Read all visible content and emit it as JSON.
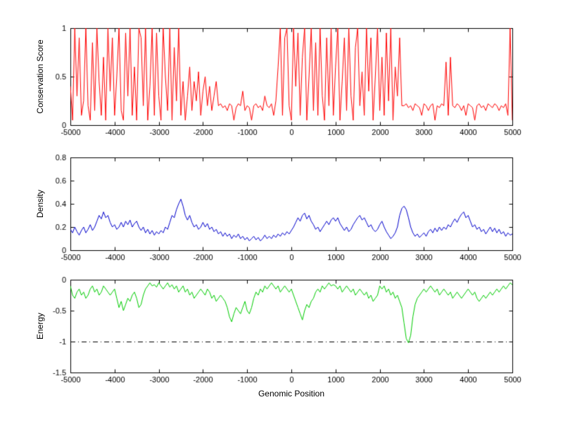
{
  "figure": {
    "background": "#ffffff"
  },
  "chart_data": [
    {
      "type": "line",
      "title": "",
      "ylabel": "Conservation Score",
      "xlabel": "",
      "color": "#ff0000",
      "xlim": [
        -5000,
        5000
      ],
      "ylim": [
        0,
        1
      ],
      "xticks": [
        -5000,
        -4000,
        -3000,
        -2000,
        -1000,
        0,
        1000,
        2000,
        3000,
        4000,
        5000
      ],
      "yticks": [
        0,
        0.5,
        1
      ],
      "grid": false,
      "legend": "none",
      "x": {
        "start": -5000,
        "step": 50,
        "count": 201
      },
      "y": [
        0.4,
        0.05,
        1.0,
        0.3,
        0.9,
        0.1,
        0.25,
        1.0,
        0.2,
        0.05,
        0.85,
        0.15,
        1.0,
        0.45,
        0.1,
        0.7,
        0.05,
        1.0,
        0.35,
        0.9,
        0.1,
        0.5,
        1.0,
        0.15,
        0.05,
        0.95,
        0.3,
        1.0,
        0.1,
        0.6,
        0.05,
        1.0,
        0.9,
        0.2,
        1.0,
        0.05,
        0.4,
        1.0,
        0.1,
        0.95,
        0.3,
        0.05,
        1.0,
        0.5,
        0.15,
        1.0,
        0.05,
        0.8,
        0.25,
        1.0,
        0.1,
        0.45,
        0.05,
        0.3,
        0.6,
        0.15,
        0.45,
        0.25,
        0.55,
        0.1,
        0.35,
        0.5,
        0.2,
        0.4,
        0.15,
        0.3,
        0.45,
        0.2,
        0.22,
        0.18,
        0.2,
        0.15,
        0.22,
        0.2,
        0.05,
        0.18,
        0.22,
        0.2,
        0.35,
        0.15,
        0.2,
        0.18,
        0.05,
        0.2,
        0.22,
        0.18,
        0.2,
        0.15,
        0.3,
        0.2,
        0.18,
        0.22,
        0.1,
        0.25,
        0.6,
        1.0,
        0.1,
        0.9,
        1.0,
        0.2,
        0.05,
        1.0,
        0.4,
        0.95,
        0.1,
        0.7,
        1.0,
        0.05,
        0.5,
        1.0,
        0.15,
        0.85,
        0.1,
        1.0,
        0.3,
        0.05,
        0.9,
        0.2,
        1.0,
        0.1,
        0.6,
        1.0,
        0.05,
        0.45,
        0.9,
        0.15,
        1.0,
        0.3,
        0.05,
        0.8,
        1.0,
        0.2,
        0.55,
        0.1,
        1.0,
        0.35,
        0.9,
        0.05,
        0.5,
        1.0,
        0.15,
        0.7,
        0.1,
        0.95,
        0.25,
        1.0,
        0.05,
        0.6,
        0.3,
        0.9,
        0.2,
        0.2,
        0.22,
        0.18,
        0.2,
        0.15,
        0.22,
        0.2,
        0.18,
        0.1,
        0.22,
        0.2,
        0.15,
        0.2,
        0.22,
        0.05,
        0.2,
        0.18,
        0.22,
        0.2,
        0.65,
        0.1,
        0.7,
        0.2,
        0.18,
        0.22,
        0.2,
        0.15,
        0.2,
        0.1,
        0.22,
        0.2,
        0.18,
        0.05,
        0.2,
        0.22,
        0.18,
        0.2,
        0.15,
        0.22,
        0.2,
        0.18,
        0.22,
        0.2,
        0.15,
        0.2,
        0.18,
        0.22,
        0.1,
        1.0,
        0.05
      ]
    },
    {
      "type": "line",
      "title": "",
      "ylabel": "Density",
      "xlabel": "",
      "color": "#0000cc",
      "xlim": [
        -5000,
        5000
      ],
      "ylim": [
        0,
        0.8
      ],
      "xticks": [
        -5000,
        -4000,
        -3000,
        -2000,
        -1000,
        0,
        1000,
        2000,
        3000,
        4000,
        5000
      ],
      "yticks": [
        0,
        0.2,
        0.4,
        0.6,
        0.8
      ],
      "grid": false,
      "legend": "none",
      "x": {
        "start": -5000,
        "step": 50,
        "count": 201
      },
      "y": [
        0.18,
        0.15,
        0.2,
        0.16,
        0.13,
        0.17,
        0.2,
        0.15,
        0.18,
        0.22,
        0.17,
        0.2,
        0.25,
        0.3,
        0.27,
        0.33,
        0.28,
        0.3,
        0.24,
        0.2,
        0.22,
        0.18,
        0.2,
        0.24,
        0.2,
        0.25,
        0.22,
        0.26,
        0.2,
        0.23,
        0.25,
        0.2,
        0.17,
        0.2,
        0.15,
        0.18,
        0.14,
        0.17,
        0.13,
        0.16,
        0.14,
        0.17,
        0.15,
        0.2,
        0.18,
        0.24,
        0.3,
        0.28,
        0.35,
        0.4,
        0.44,
        0.38,
        0.3,
        0.26,
        0.3,
        0.24,
        0.2,
        0.22,
        0.18,
        0.2,
        0.24,
        0.2,
        0.23,
        0.18,
        0.2,
        0.16,
        0.18,
        0.14,
        0.16,
        0.12,
        0.15,
        0.12,
        0.14,
        0.1,
        0.13,
        0.11,
        0.14,
        0.1,
        0.12,
        0.09,
        0.11,
        0.08,
        0.1,
        0.12,
        0.09,
        0.11,
        0.08,
        0.1,
        0.13,
        0.1,
        0.12,
        0.1,
        0.13,
        0.11,
        0.14,
        0.12,
        0.15,
        0.13,
        0.16,
        0.14,
        0.17,
        0.2,
        0.24,
        0.28,
        0.25,
        0.3,
        0.32,
        0.27,
        0.3,
        0.25,
        0.22,
        0.18,
        0.2,
        0.16,
        0.19,
        0.22,
        0.25,
        0.22,
        0.26,
        0.28,
        0.25,
        0.28,
        0.23,
        0.2,
        0.17,
        0.2,
        0.16,
        0.18,
        0.22,
        0.25,
        0.28,
        0.3,
        0.26,
        0.28,
        0.24,
        0.2,
        0.22,
        0.18,
        0.16,
        0.18,
        0.22,
        0.25,
        0.2,
        0.16,
        0.13,
        0.1,
        0.12,
        0.15,
        0.2,
        0.3,
        0.36,
        0.38,
        0.35,
        0.28,
        0.2,
        0.15,
        0.12,
        0.14,
        0.11,
        0.13,
        0.15,
        0.12,
        0.16,
        0.18,
        0.15,
        0.19,
        0.16,
        0.2,
        0.17,
        0.2,
        0.18,
        0.22,
        0.2,
        0.24,
        0.27,
        0.24,
        0.28,
        0.31,
        0.33,
        0.28,
        0.3,
        0.25,
        0.2,
        0.22,
        0.18,
        0.2,
        0.16,
        0.18,
        0.14,
        0.17,
        0.2,
        0.16,
        0.19,
        0.15,
        0.18,
        0.14,
        0.16,
        0.12,
        0.15,
        0.13,
        0.14
      ]
    },
    {
      "type": "line",
      "title": "",
      "ylabel": "Energy",
      "xlabel": "Genomic Position",
      "color": "#00cc00",
      "xlim": [
        -5000,
        5000
      ],
      "ylim": [
        -1.5,
        0
      ],
      "xticks": [
        -5000,
        -4000,
        -3000,
        -2000,
        -1000,
        0,
        1000,
        2000,
        3000,
        4000,
        5000
      ],
      "yticks": [
        -1.5,
        -1,
        -0.5,
        0
      ],
      "grid": false,
      "legend": "none",
      "reference_line": {
        "y": -1,
        "style": "dash-dot",
        "color": "#000000"
      },
      "x": {
        "start": -5000,
        "step": 50,
        "count": 201
      },
      "y": [
        -0.1,
        -0.25,
        -0.3,
        -0.2,
        -0.15,
        -0.25,
        -0.2,
        -0.3,
        -0.25,
        -0.15,
        -0.1,
        -0.2,
        -0.15,
        -0.25,
        -0.2,
        -0.1,
        -0.15,
        -0.2,
        -0.25,
        -0.2,
        -0.15,
        -0.3,
        -0.45,
        -0.35,
        -0.5,
        -0.4,
        -0.3,
        -0.35,
        -0.25,
        -0.2,
        -0.3,
        -0.45,
        -0.4,
        -0.25,
        -0.15,
        -0.1,
        -0.05,
        -0.1,
        -0.08,
        -0.12,
        -0.05,
        -0.1,
        -0.15,
        -0.1,
        -0.05,
        -0.12,
        -0.08,
        -0.15,
        -0.1,
        -0.2,
        -0.15,
        -0.1,
        -0.2,
        -0.15,
        -0.25,
        -0.2,
        -0.3,
        -0.25,
        -0.2,
        -0.15,
        -0.2,
        -0.25,
        -0.15,
        -0.2,
        -0.3,
        -0.25,
        -0.35,
        -0.3,
        -0.25,
        -0.3,
        -0.35,
        -0.45,
        -0.6,
        -0.68,
        -0.55,
        -0.45,
        -0.5,
        -0.55,
        -0.45,
        -0.35,
        -0.5,
        -0.55,
        -0.45,
        -0.3,
        -0.2,
        -0.25,
        -0.15,
        -0.2,
        -0.1,
        -0.15,
        -0.1,
        -0.05,
        -0.1,
        -0.15,
        -0.1,
        -0.2,
        -0.15,
        -0.1,
        -0.15,
        -0.2,
        -0.15,
        -0.25,
        -0.35,
        -0.45,
        -0.55,
        -0.65,
        -0.5,
        -0.4,
        -0.45,
        -0.35,
        -0.3,
        -0.2,
        -0.15,
        -0.2,
        -0.1,
        -0.15,
        -0.1,
        -0.05,
        -0.1,
        -0.08,
        -0.1,
        -0.15,
        -0.1,
        -0.2,
        -0.15,
        -0.1,
        -0.15,
        -0.2,
        -0.15,
        -0.25,
        -0.2,
        -0.15,
        -0.2,
        -0.25,
        -0.2,
        -0.3,
        -0.25,
        -0.35,
        -0.3,
        -0.25,
        -0.1,
        -0.15,
        -0.1,
        -0.2,
        -0.15,
        -0.25,
        -0.2,
        -0.3,
        -0.25,
        -0.35,
        -0.45,
        -0.7,
        -0.95,
        -1.02,
        -0.9,
        -0.6,
        -0.4,
        -0.3,
        -0.25,
        -0.2,
        -0.15,
        -0.2,
        -0.15,
        -0.1,
        -0.15,
        -0.2,
        -0.15,
        -0.25,
        -0.2,
        -0.15,
        -0.2,
        -0.25,
        -0.2,
        -0.3,
        -0.25,
        -0.2,
        -0.25,
        -0.3,
        -0.25,
        -0.2,
        -0.15,
        -0.2,
        -0.25,
        -0.2,
        -0.3,
        -0.35,
        -0.3,
        -0.25,
        -0.3,
        -0.25,
        -0.2,
        -0.25,
        -0.2,
        -0.15,
        -0.2,
        -0.15,
        -0.1,
        -0.15,
        -0.1,
        -0.05,
        -0.08
      ]
    }
  ]
}
